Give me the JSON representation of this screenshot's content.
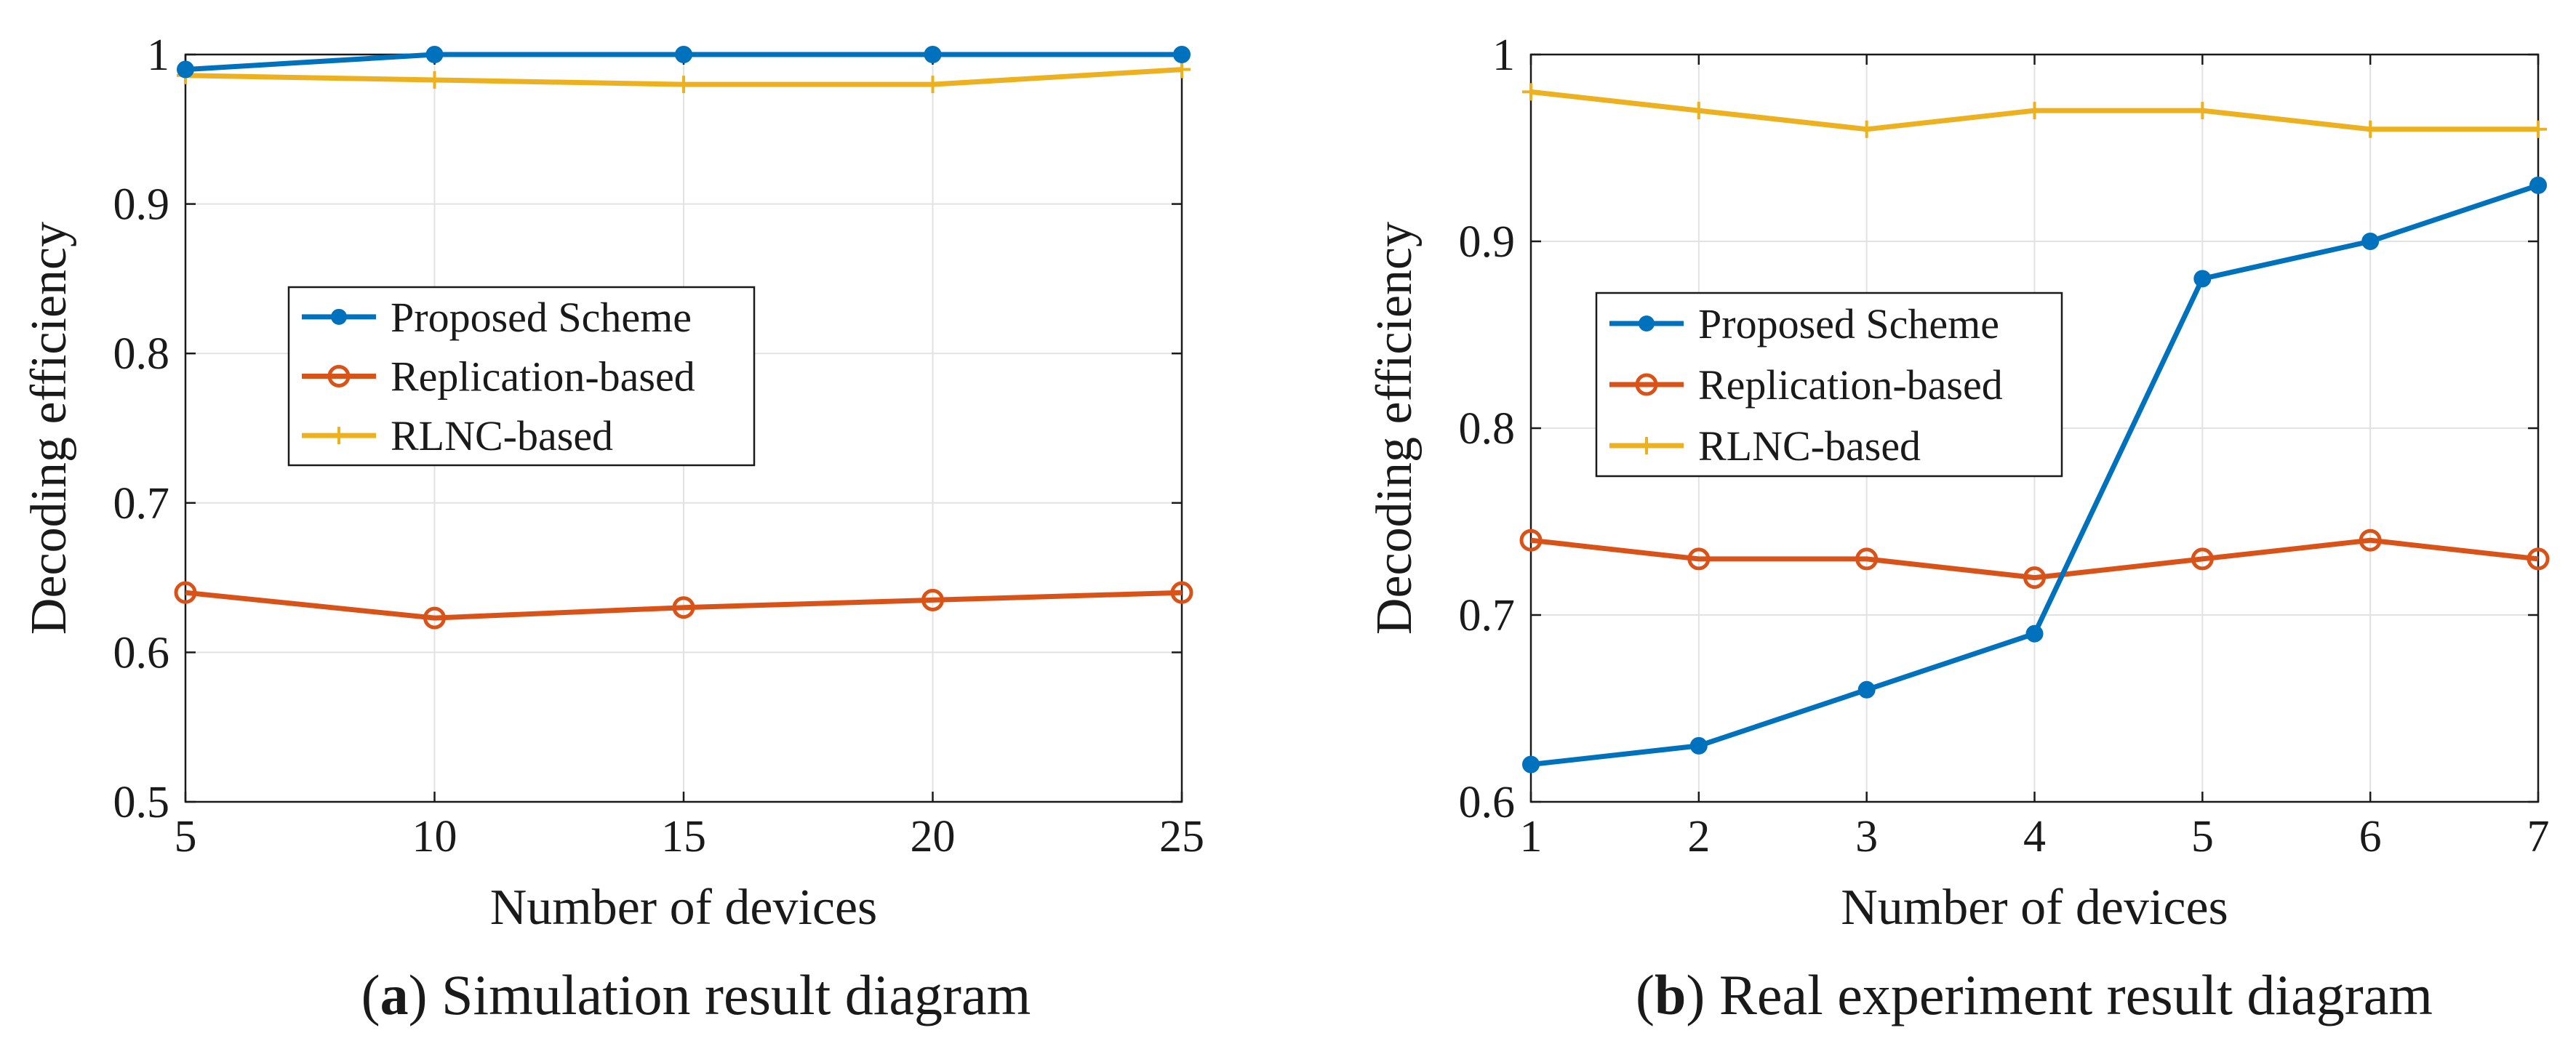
{
  "colors": {
    "proposed": "#0072BD",
    "replication": "#D95319",
    "rlnc": "#EDB120",
    "grid": "#e2e2e2",
    "axis": "#1a1a1a"
  },
  "chart_data": [
    {
      "type": "line",
      "caption_letter": "a",
      "caption_text": ") Simulation result diagram",
      "xlabel": "Number of devices",
      "ylabel": "Decoding efficiency",
      "x": [
        5,
        10,
        15,
        20,
        25
      ],
      "xlim": [
        5,
        25
      ],
      "ylim": [
        0.5,
        1
      ],
      "xticks": [
        5,
        10,
        15,
        20,
        25
      ],
      "xtick_labels": [
        "5",
        "10",
        "15",
        "20",
        "25"
      ],
      "yticks": [
        0.5,
        0.6,
        0.7,
        0.8,
        0.9,
        1
      ],
      "ytick_labels": [
        "0.5",
        "0.6",
        "0.7",
        "0.8",
        "0.9",
        "1"
      ],
      "grid": true,
      "legend_position": "center-left",
      "series": [
        {
          "name": "Proposed Scheme",
          "color_key": "proposed",
          "marker": "dot",
          "values": [
            0.99,
            1.0,
            1.0,
            1.0,
            1.0
          ]
        },
        {
          "name": "Replication-based",
          "color_key": "replication",
          "marker": "circle",
          "values": [
            0.64,
            0.623,
            0.63,
            0.635,
            0.64
          ]
        },
        {
          "name": "RLNC-based",
          "color_key": "rlnc",
          "marker": "plus",
          "values": [
            0.986,
            0.983,
            0.98,
            0.98,
            0.99
          ]
        }
      ]
    },
    {
      "type": "line",
      "caption_letter": "b",
      "caption_text": ") Real experiment result diagram",
      "xlabel": "Number of devices",
      "ylabel": "Decoding efficiency",
      "x": [
        1,
        2,
        3,
        4,
        5,
        6,
        7
      ],
      "xlim": [
        1,
        7
      ],
      "ylim": [
        0.6,
        1
      ],
      "xticks": [
        1,
        2,
        3,
        4,
        5,
        6,
        7
      ],
      "xtick_labels": [
        "1",
        "2",
        "3",
        "4",
        "5",
        "6",
        "7"
      ],
      "yticks": [
        0.6,
        0.7,
        0.8,
        0.9,
        1
      ],
      "ytick_labels": [
        "0.6",
        "0.7",
        "0.8",
        "0.9",
        "1"
      ],
      "grid": true,
      "legend_position": "center-left",
      "series": [
        {
          "name": "Proposed Scheme",
          "color_key": "proposed",
          "marker": "dot",
          "values": [
            0.62,
            0.63,
            0.66,
            0.69,
            0.88,
            0.9,
            0.93
          ]
        },
        {
          "name": "Replication-based",
          "color_key": "replication",
          "marker": "circle",
          "values": [
            0.74,
            0.73,
            0.73,
            0.72,
            0.73,
            0.74,
            0.73
          ]
        },
        {
          "name": "RLNC-based",
          "color_key": "rlnc",
          "marker": "plus",
          "values": [
            0.98,
            0.97,
            0.96,
            0.97,
            0.97,
            0.96,
            0.96
          ]
        }
      ]
    }
  ]
}
